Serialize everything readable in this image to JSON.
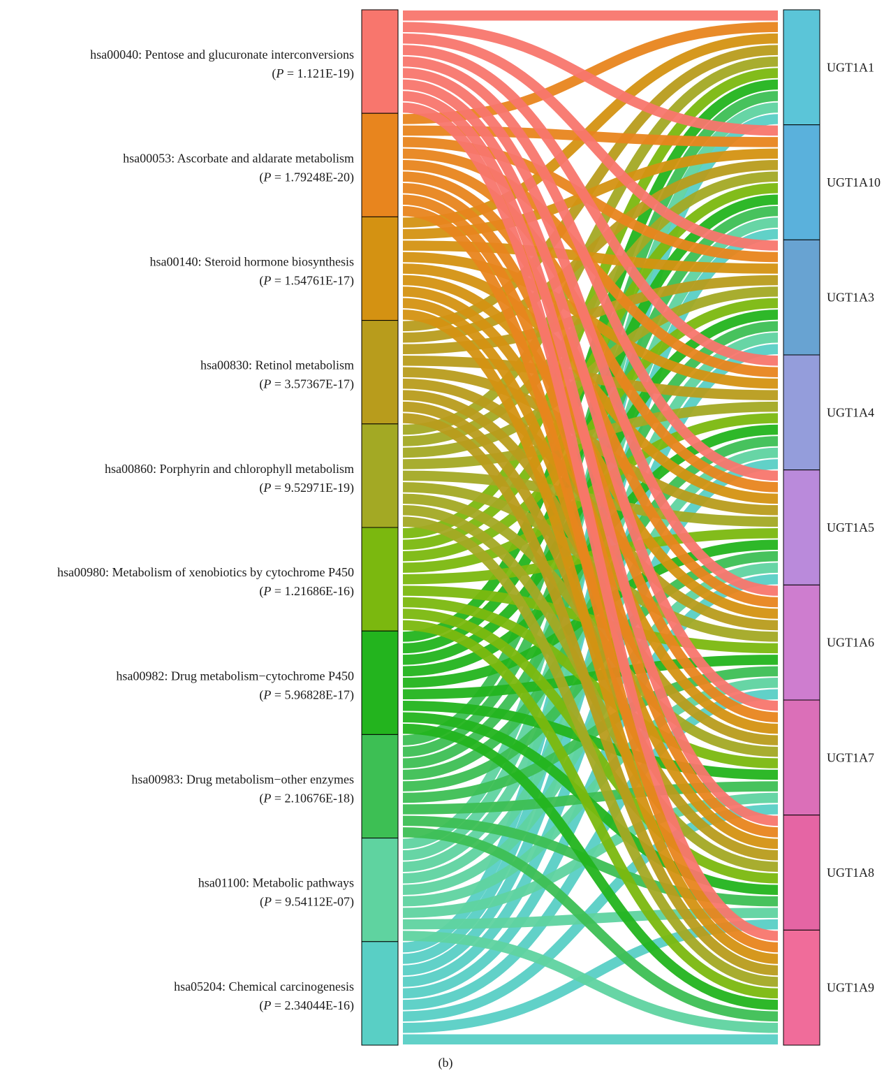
{
  "pathways": [
    {
      "label": "hsa00040: Pentose and glucuronate interconversions",
      "p": "1.121E-19",
      "color": "#F8766D"
    },
    {
      "label": "hsa00053: Ascorbate and aldarate metabolism",
      "p": "1.79248E-20",
      "color": "#E8851E"
    },
    {
      "label": "hsa00140: Steroid hormone biosynthesis",
      "p": "1.54761E-17",
      "color": "#D49212"
    },
    {
      "label": "hsa00830: Retinol metabolism",
      "p": "3.57367E-17",
      "color": "#B89C1C"
    },
    {
      "label": "hsa00860: Porphyrin and chlorophyll metabolism",
      "p": "9.52971E-19",
      "color": "#A3A924"
    },
    {
      "label": "hsa00980: Metabolism of xenobiotics by cytochrome P450",
      "p": "1.21686E-16",
      "color": "#7BB80F"
    },
    {
      "label": "hsa00982: Drug metabolism−cytochrome P450",
      "p": "5.96828E-17",
      "color": "#23B41E"
    },
    {
      "label": "hsa00983: Drug metabolism−other enzymes",
      "p": "2.10676E-18",
      "color": "#3DBF54"
    },
    {
      "label": "hsa01100: Metabolic pathways",
      "p": "9.54112E-07",
      "color": "#5FD3A0"
    },
    {
      "label": "hsa05204: Chemical carcinogenesis",
      "p": "2.34044E-16",
      "color": "#59CFC5"
    }
  ],
  "genes": [
    {
      "label": "UGT1A1",
      "color": "#5BC5D8"
    },
    {
      "label": "UGT1A10",
      "color": "#5AB1DC"
    },
    {
      "label": "UGT1A3",
      "color": "#68A3D2"
    },
    {
      "label": "UGT1A4",
      "color": "#949DDB"
    },
    {
      "label": "UGT1A5",
      "color": "#BA8ADB"
    },
    {
      "label": "UGT1A6",
      "color": "#CE7DCF"
    },
    {
      "label": "UGT1A7",
      "color": "#DB6FB8"
    },
    {
      "label": "UGT1A8",
      "color": "#E565A4"
    },
    {
      "label": "UGT1A9",
      "color": "#F06C9A"
    }
  ],
  "p_prefix": "(",
  "p_symbol": "P",
  "p_equals": " = ",
  "p_suffix": ")",
  "caption": "(b)"
}
